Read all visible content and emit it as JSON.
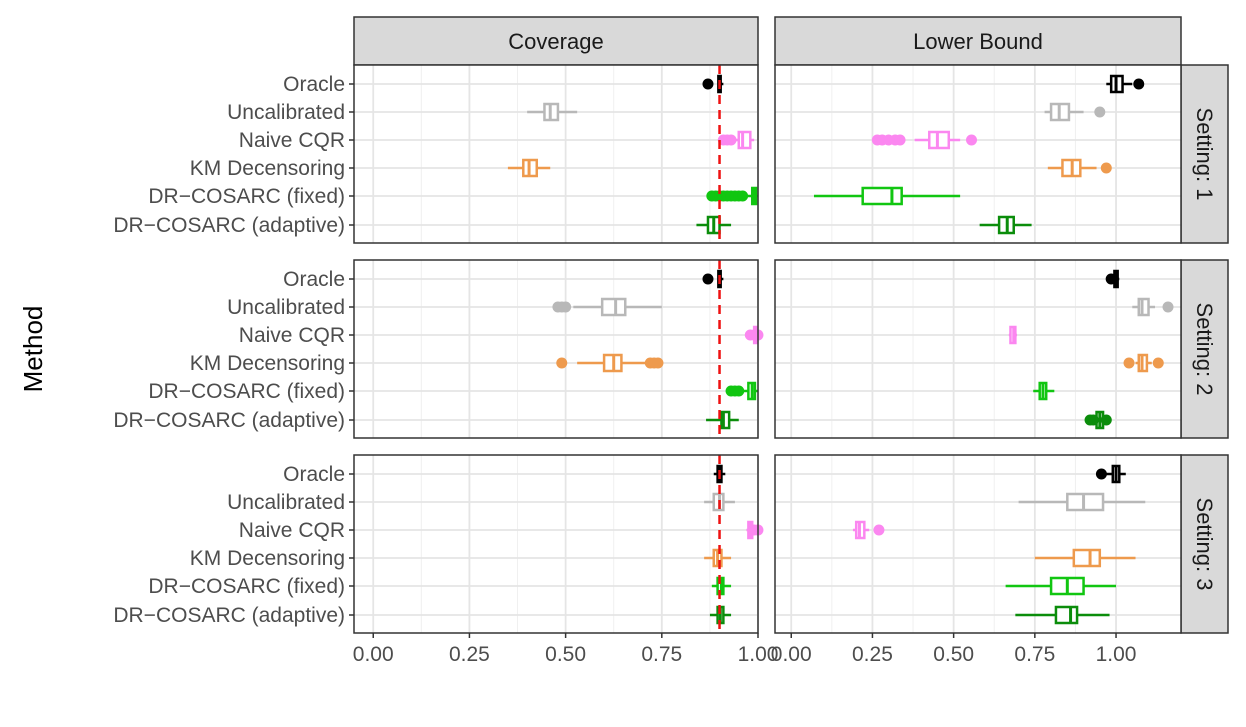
{
  "chart_data": {
    "type": "boxplot",
    "y_axis_title": "Method",
    "methods": [
      "Oracle",
      "Uncalibrated",
      "Naive CQR",
      "KM Decensoring",
      "DR−COSARC (fixed)",
      "DR−COSARC (adaptive)"
    ],
    "colors": {
      "Oracle": "#000000",
      "Uncalibrated": "#b8b8b8",
      "Naive CQR": "#fb87f0",
      "KM Decensoring": "#ee9a4d",
      "DR−COSARC (fixed)": "#11c611",
      "DR−COSARC (adaptive)": "#0b8d0b"
    },
    "columns": [
      {
        "title": "Coverage",
        "xlim": [
          -0.05,
          1.0
        ],
        "ticks": [
          0,
          0.25,
          0.5,
          0.75,
          1.0
        ],
        "tick_labels": [
          "0.00",
          "0.25",
          "0.50",
          "0.75",
          "1.00"
        ],
        "reference_line": 0.9
      },
      {
        "title": "Lower Bound",
        "xlim": [
          -0.05,
          1.2
        ],
        "ticks": [
          0,
          0.25,
          0.5,
          0.75,
          1.0
        ],
        "tick_labels": [
          "0.00",
          "0.25",
          "0.50",
          "0.75",
          "1.00"
        ],
        "reference_line": null
      }
    ],
    "rows": [
      "Setting: 1",
      "Setting: 2",
      "Setting: 3"
    ],
    "panels": [
      [
        [
          {
            "min": 0.895,
            "q1": 0.897,
            "median": 0.9,
            "q3": 0.903,
            "max": 0.91,
            "outliers": [
              0.87
            ]
          },
          {
            "min": 0.4,
            "q1": 0.445,
            "median": 0.46,
            "q3": 0.48,
            "max": 0.53,
            "outliers": []
          },
          {
            "min": 0.92,
            "q1": 0.95,
            "median": 0.96,
            "q3": 0.98,
            "max": 0.99,
            "outliers": [
              0.91,
              0.92,
              0.93
            ]
          },
          {
            "min": 0.35,
            "q1": 0.39,
            "median": 0.405,
            "q3": 0.425,
            "max": 0.46,
            "outliers": []
          },
          {
            "min": 0.965,
            "q1": 0.985,
            "median": 0.99,
            "q3": 0.995,
            "max": 1.0,
            "outliers": [
              0.88,
              0.89,
              0.9,
              0.91,
              0.92,
              0.93,
              0.94,
              0.95,
              0.96
            ]
          },
          {
            "min": 0.84,
            "q1": 0.87,
            "median": 0.885,
            "q3": 0.9,
            "max": 0.93,
            "outliers": []
          }
        ],
        [
          {
            "min": 0.97,
            "q1": 0.985,
            "median": 1.0,
            "q3": 1.02,
            "max": 1.05,
            "outliers": [
              1.07
            ]
          },
          {
            "min": 0.78,
            "q1": 0.8,
            "median": 0.825,
            "q3": 0.855,
            "max": 0.9,
            "outliers": [
              0.95
            ]
          },
          {
            "min": 0.38,
            "q1": 0.425,
            "median": 0.45,
            "q3": 0.485,
            "max": 0.52,
            "outliers": [
              0.265,
              0.28,
              0.3,
              0.32,
              0.335,
              0.555
            ]
          },
          {
            "min": 0.79,
            "q1": 0.835,
            "median": 0.865,
            "q3": 0.89,
            "max": 0.94,
            "outliers": [
              0.97
            ]
          },
          {
            "min": 0.07,
            "q1": 0.22,
            "median": 0.31,
            "q3": 0.34,
            "max": 0.52,
            "outliers": []
          },
          {
            "min": 0.58,
            "q1": 0.64,
            "median": 0.665,
            "q3": 0.685,
            "max": 0.74,
            "outliers": []
          }
        ]
      ],
      [
        [
          {
            "min": 0.895,
            "q1": 0.897,
            "median": 0.9,
            "q3": 0.903,
            "max": 0.91,
            "outliers": [
              0.87
            ]
          },
          {
            "min": 0.52,
            "q1": 0.595,
            "median": 0.63,
            "q3": 0.655,
            "max": 0.75,
            "outliers": [
              0.48,
              0.49,
              0.5
            ]
          },
          {
            "min": 0.985,
            "q1": 0.99,
            "median": 0.993,
            "q3": 0.996,
            "max": 1.0,
            "outliers": [
              0.98,
              0.99,
              1.0
            ]
          },
          {
            "min": 0.53,
            "q1": 0.6,
            "median": 0.625,
            "q3": 0.645,
            "max": 0.71,
            "outliers": [
              0.49,
              0.72,
              0.73,
              0.74
            ]
          },
          {
            "min": 0.96,
            "q1": 0.975,
            "median": 0.985,
            "q3": 0.992,
            "max": 1.0,
            "outliers": [
              0.93,
              0.94,
              0.95
            ]
          },
          {
            "min": 0.865,
            "q1": 0.905,
            "median": 0.91,
            "q3": 0.925,
            "max": 0.95,
            "outliers": []
          }
        ],
        [
          {
            "min": 0.99,
            "q1": 0.995,
            "median": 1.0,
            "q3": 1.005,
            "max": 1.01,
            "outliers": [
              0.985
            ]
          },
          {
            "min": 1.05,
            "q1": 1.07,
            "median": 1.08,
            "q3": 1.1,
            "max": 1.12,
            "outliers": [
              1.16
            ]
          },
          {
            "min": 0.67,
            "q1": 0.675,
            "median": 0.685,
            "q3": 0.69,
            "max": 0.695,
            "outliers": []
          },
          {
            "min": 1.06,
            "q1": 1.07,
            "median": 1.08,
            "q3": 1.095,
            "max": 1.11,
            "outliers": [
              1.04,
              1.13
            ]
          },
          {
            "min": 0.745,
            "q1": 0.765,
            "median": 0.775,
            "q3": 0.785,
            "max": 0.81,
            "outliers": []
          },
          {
            "min": 0.93,
            "q1": 0.94,
            "median": 0.95,
            "q3": 0.96,
            "max": 0.97,
            "outliers": [
              0.92,
              0.93,
              0.97
            ]
          }
        ]
      ],
      [
        [
          {
            "min": 0.885,
            "q1": 0.895,
            "median": 0.9,
            "q3": 0.905,
            "max": 0.915,
            "outliers": []
          },
          {
            "min": 0.86,
            "q1": 0.885,
            "median": 0.9,
            "q3": 0.91,
            "max": 0.94,
            "outliers": []
          },
          {
            "min": 0.97,
            "q1": 0.975,
            "median": 0.98,
            "q3": 0.985,
            "max": 0.99,
            "outliers": [
              0.99,
              1.0
            ]
          },
          {
            "min": 0.86,
            "q1": 0.885,
            "median": 0.895,
            "q3": 0.905,
            "max": 0.93,
            "outliers": []
          },
          {
            "min": 0.88,
            "q1": 0.895,
            "median": 0.905,
            "q3": 0.91,
            "max": 0.93,
            "outliers": []
          },
          {
            "min": 0.875,
            "q1": 0.895,
            "median": 0.902,
            "q3": 0.91,
            "max": 0.93,
            "outliers": []
          }
        ],
        [
          {
            "min": 0.97,
            "q1": 0.99,
            "median": 1.0,
            "q3": 1.01,
            "max": 1.03,
            "outliers": [
              0.955
            ]
          },
          {
            "min": 0.7,
            "q1": 0.85,
            "median": 0.9,
            "q3": 0.96,
            "max": 1.09,
            "outliers": []
          },
          {
            "min": 0.19,
            "q1": 0.2,
            "median": 0.21,
            "q3": 0.225,
            "max": 0.24,
            "outliers": [
              0.27
            ]
          },
          {
            "min": 0.75,
            "q1": 0.87,
            "median": 0.92,
            "q3": 0.95,
            "max": 1.06,
            "outliers": []
          },
          {
            "min": 0.66,
            "q1": 0.8,
            "median": 0.85,
            "q3": 0.9,
            "max": 1.0,
            "outliers": []
          },
          {
            "min": 0.69,
            "q1": 0.815,
            "median": 0.86,
            "q3": 0.88,
            "max": 0.98,
            "outliers": []
          }
        ]
      ]
    ]
  }
}
